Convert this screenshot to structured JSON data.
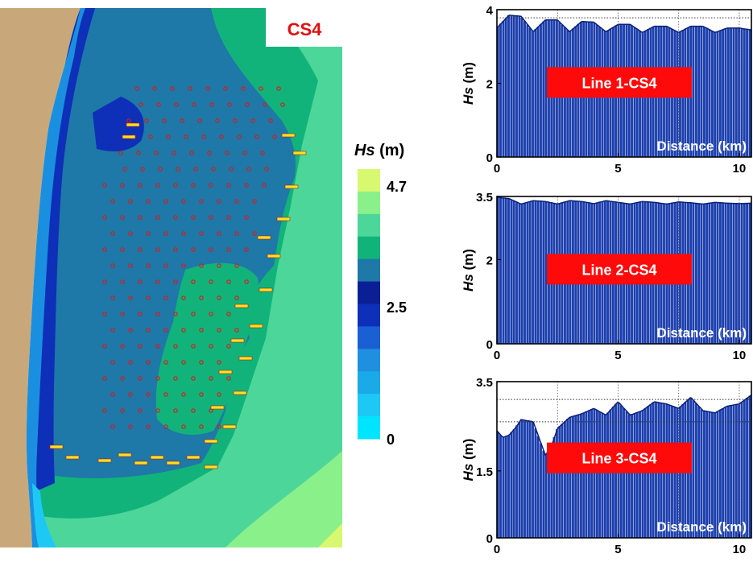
{
  "map": {
    "label": "CS4",
    "colorbar": {
      "title_var": "Hs",
      "title_unit": " (m)",
      "ticks": [
        "4.7",
        "2.5",
        "0"
      ],
      "colors": [
        "#00e5ff",
        "#1ec8f5",
        "#1aaae8",
        "#1f8fe0",
        "#1a5fd4",
        "#0e2fb8",
        "#0a1f96",
        "#1e78a8",
        "#12b37a",
        "#4cd69a",
        "#8af08a",
        "#d8f870"
      ]
    }
  },
  "chart_data": [
    {
      "type": "bar",
      "title": "Line 1-CS4",
      "ylabel_var": "Hs",
      "ylabel_unit": " (m)",
      "xlabel": "Distance (km)",
      "xlim": [
        0,
        10.5
      ],
      "ylim": [
        0,
        4
      ],
      "yticks": [
        "0",
        "2",
        "4"
      ],
      "xticks": [
        "0",
        "5",
        "10"
      ],
      "bar_color": "#1a3fb5",
      "reference_lines": [
        3.78
      ],
      "x": [
        0,
        0.5,
        1,
        1.5,
        2,
        2.5,
        3,
        3.5,
        4,
        4.5,
        5,
        5.5,
        6,
        6.5,
        7,
        7.5,
        8,
        8.5,
        9,
        9.5,
        10,
        10.5
      ],
      "values": [
        3.5,
        3.85,
        3.82,
        3.4,
        3.72,
        3.72,
        3.4,
        3.68,
        3.66,
        3.4,
        3.6,
        3.6,
        3.38,
        3.55,
        3.55,
        3.38,
        3.55,
        3.55,
        3.38,
        3.5,
        3.5,
        3.45
      ]
    },
    {
      "type": "bar",
      "title": "Line 2-CS4",
      "ylabel_var": "Hs",
      "ylabel_unit": " (m)",
      "xlabel": "Distance (km)",
      "xlim": [
        0,
        10.5
      ],
      "ylim": [
        0,
        3.5
      ],
      "yticks": [
        "0",
        "2",
        "3.5"
      ],
      "xticks": [
        "0",
        "5",
        "10"
      ],
      "bar_color": "#1a3fb5",
      "reference_lines": [
        3.5
      ],
      "x": [
        0,
        0.5,
        1,
        1.5,
        2,
        2.5,
        3,
        3.5,
        4,
        4.5,
        5,
        5.5,
        6,
        6.5,
        7,
        7.5,
        8,
        8.5,
        9,
        9.5,
        10,
        10.5
      ],
      "values": [
        3.48,
        3.45,
        3.32,
        3.4,
        3.38,
        3.32,
        3.4,
        3.38,
        3.33,
        3.4,
        3.36,
        3.32,
        3.38,
        3.36,
        3.32,
        3.37,
        3.35,
        3.32,
        3.36,
        3.34,
        3.33,
        3.34
      ]
    },
    {
      "type": "bar",
      "title": "Line 3-CS4",
      "ylabel_var": "Hs",
      "ylabel_unit": " (m)",
      "xlabel": "Distance (km)",
      "xlim": [
        0,
        10.5
      ],
      "ylim": [
        0,
        3.5
      ],
      "yticks": [
        "0",
        "1.5",
        "3.5"
      ],
      "xticks": [
        "0",
        "5",
        "10"
      ],
      "bar_color": "#1a3fb5",
      "reference_lines": [
        3.1,
        2.6
      ],
      "x": [
        0,
        0.25,
        0.5,
        0.75,
        1,
        1.5,
        2,
        2.25,
        2.5,
        3,
        3.5,
        4,
        4.5,
        5,
        5.5,
        6,
        6.5,
        7,
        7.5,
        8,
        8.5,
        9,
        9.5,
        10,
        10.5
      ],
      "values": [
        2.4,
        2.25,
        2.3,
        2.45,
        2.65,
        2.6,
        1.85,
        2.05,
        2.45,
        2.7,
        2.78,
        2.9,
        2.75,
        3.05,
        2.75,
        2.85,
        3.05,
        3.0,
        2.9,
        3.15,
        2.85,
        2.8,
        2.95,
        3.0,
        3.2
      ]
    }
  ]
}
